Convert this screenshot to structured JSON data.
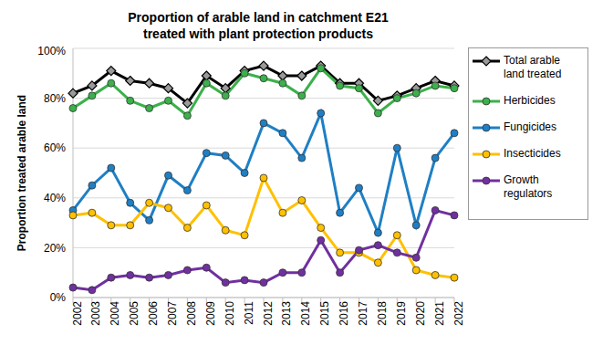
{
  "chart_data": {
    "type": "line",
    "title": "Proportion of arable land in catchment E21 treated with plant protection products",
    "y_label": "Proportion treated arable land",
    "categories": [
      "2002",
      "2003",
      "2004",
      "2005",
      "2006",
      "2007",
      "2008",
      "2009",
      "2010",
      "2011",
      "2012",
      "2013",
      "2014",
      "2015",
      "2016",
      "2017",
      "2018",
      "2019",
      "2020",
      "2021",
      "2022"
    ],
    "series": [
      {
        "name": "Total arable land treated",
        "color": "#000000",
        "marker": "diamond",
        "values": [
          82,
          85,
          91,
          87,
          86,
          84,
          78,
          89,
          84,
          91,
          93,
          89,
          89,
          93,
          86,
          86,
          79,
          81,
          84,
          87,
          85
        ]
      },
      {
        "name": "Herbicides",
        "color": "#3cb04b",
        "marker": "circle",
        "values": [
          76,
          81,
          86,
          79,
          76,
          79,
          73,
          86,
          81,
          90,
          88,
          86,
          81,
          92,
          85,
          84,
          74,
          80,
          82,
          85,
          84
        ]
      },
      {
        "name": "Fungicides",
        "color": "#1f7fc4",
        "marker": "circle",
        "values": [
          35,
          45,
          52,
          38,
          31,
          49,
          43,
          58,
          57,
          50,
          70,
          66,
          56,
          74,
          34,
          44,
          26,
          60,
          29,
          56,
          66
        ]
      },
      {
        "name": "Insecticides",
        "color": "#ffc000",
        "marker": "circle",
        "values": [
          33,
          34,
          29,
          29,
          38,
          36,
          28,
          37,
          27,
          25,
          48,
          34,
          39,
          28,
          18,
          18,
          14,
          25,
          11,
          9,
          8
        ]
      },
      {
        "name": "Growth regulators",
        "color": "#7030a0",
        "marker": "circle",
        "values": [
          4,
          3,
          8,
          9,
          8,
          9,
          11,
          12,
          6,
          7,
          6,
          10,
          10,
          23,
          10,
          19,
          21,
          18,
          16,
          35,
          33
        ]
      }
    ],
    "ylim": [
      0,
      100
    ],
    "yticks": [
      {
        "value": 0,
        "label": "0%"
      },
      {
        "value": 20,
        "label": "20%"
      },
      {
        "value": 40,
        "label": "40%"
      },
      {
        "value": 60,
        "label": "60%"
      },
      {
        "value": 80,
        "label": "80%"
      },
      {
        "value": 100,
        "label": "100%"
      }
    ],
    "grid": true,
    "legend": "right"
  }
}
